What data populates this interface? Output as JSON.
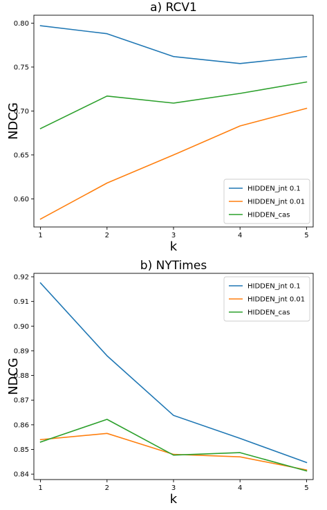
{
  "chart_data": [
    {
      "type": "line",
      "title": "a) RCV1",
      "xlabel": "k",
      "ylabel": "NDCG",
      "x": [
        1,
        2,
        3,
        4,
        5
      ],
      "xticks": [
        "1",
        "2",
        "3",
        "4",
        "5"
      ],
      "xlim": [
        0.9,
        5.1
      ],
      "ylim": [
        0.568,
        0.809
      ],
      "yticks": [
        "0.60",
        "0.65",
        "0.70",
        "0.75",
        "0.80"
      ],
      "grid": false,
      "legend_position": "lower-right",
      "series": [
        {
          "name": "HIDDEN_jnt 0.1",
          "color": "#1f77b4",
          "values": [
            0.797,
            0.788,
            0.762,
            0.754,
            0.762
          ]
        },
        {
          "name": "HIDDEN_jnt 0.01",
          "color": "#ff7f0e",
          "values": [
            0.577,
            0.618,
            0.65,
            0.683,
            0.703
          ]
        },
        {
          "name": "HIDDEN_cas",
          "color": "#2ca02c",
          "values": [
            0.68,
            0.717,
            0.709,
            0.72,
            0.733
          ]
        }
      ]
    },
    {
      "type": "line",
      "title": "b) NYTimes",
      "xlabel": "k",
      "ylabel": "NDCG",
      "x": [
        1,
        2,
        3,
        4,
        5
      ],
      "xticks": [
        "1",
        "2",
        "3",
        "4",
        "5"
      ],
      "xlim": [
        0.9,
        5.1
      ],
      "ylim": [
        0.8378,
        0.9214
      ],
      "yticks": [
        "0.84",
        "0.85",
        "0.86",
        "0.87",
        "0.88",
        "0.89",
        "0.90",
        "0.91",
        "0.92"
      ],
      "grid": false,
      "legend_position": "upper-right",
      "series": [
        {
          "name": "HIDDEN_jnt 0.1",
          "color": "#1f77b4",
          "values": [
            0.9175,
            0.888,
            0.8638,
            0.8545,
            0.8447
          ]
        },
        {
          "name": "HIDDEN_jnt 0.01",
          "color": "#ff7f0e",
          "values": [
            0.854,
            0.8565,
            0.848,
            0.847,
            0.8417
          ]
        },
        {
          "name": "HIDDEN_cas",
          "color": "#2ca02c",
          "values": [
            0.853,
            0.8622,
            0.8477,
            0.8487,
            0.8413
          ]
        }
      ]
    }
  ]
}
